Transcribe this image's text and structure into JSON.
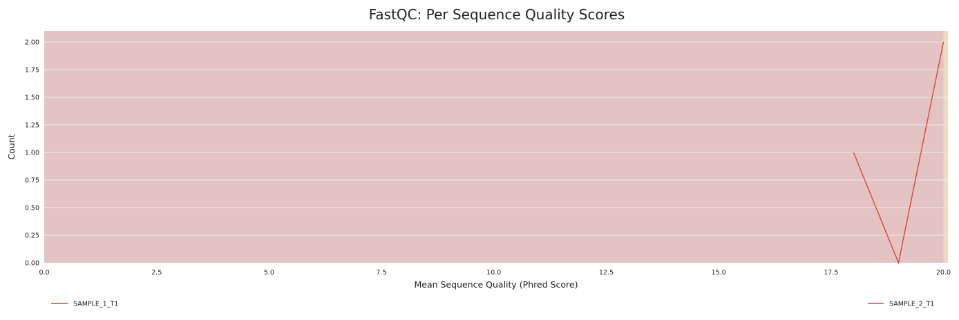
{
  "chart_data": {
    "type": "line",
    "title": "FastQC: Per Sequence Quality Scores",
    "xlabel": "Mean Sequence Quality (Phred Score)",
    "ylabel": "Count",
    "xlim": [
      0,
      20.1
    ],
    "ylim": [
      0,
      2.1
    ],
    "x_ticks": [
      "0.0",
      "2.5",
      "5.0",
      "7.5",
      "10.0",
      "12.5",
      "15.0",
      "17.5",
      "20.0"
    ],
    "y_ticks": [
      "0.00",
      "0.25",
      "0.50",
      "0.75",
      "1.00",
      "1.25",
      "1.50",
      "1.75",
      "2.00"
    ],
    "grid": true,
    "background_zones": [
      {
        "from": 0,
        "to": 20,
        "color": "#e3c3c3"
      },
      {
        "from": 20,
        "to": 20.1,
        "color": "#eadcc0"
      }
    ],
    "series": [
      {
        "name": "SAMPLE_1_T1",
        "color": "#e0423a",
        "x": [
          18,
          19,
          20
        ],
        "y": [
          1,
          0,
          2
        ]
      },
      {
        "name": "SAMPLE_2_T1",
        "color": "#e0423a",
        "x": [],
        "y": []
      }
    ],
    "legend_position": "bottom"
  }
}
